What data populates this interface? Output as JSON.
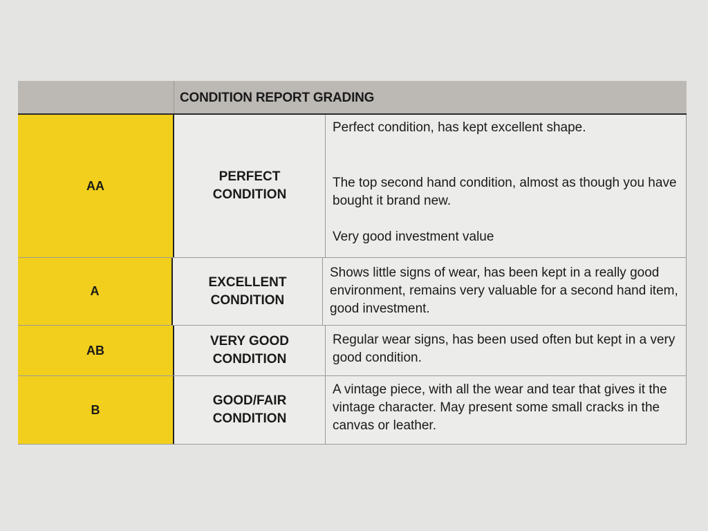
{
  "table": {
    "title": "CONDITION REPORT GRADING",
    "colors": {
      "header": "#bcb9b4",
      "grade": "#f1cf1c",
      "cell": "#ececeb"
    },
    "rows": [
      {
        "grade": "AA",
        "condition": [
          "PERFECT",
          "CONDITION"
        ],
        "description": [
          "Perfect condition, has kept excellent shape.",
          "The top second hand condition, almost as though you have bought it brand new.",
          "Very good investment value"
        ]
      },
      {
        "grade": "A",
        "condition": [
          "EXCELLENT",
          "CONDITION"
        ],
        "description": [
          "Shows little signs of wear, has been kept in a really good environment, remains very valuable for a second hand item, good investment."
        ]
      },
      {
        "grade": "AB",
        "condition": [
          "VERY GOOD",
          "CONDITION"
        ],
        "description": [
          "Regular wear signs, has been used often but kept in a very good condition."
        ]
      },
      {
        "grade": "B",
        "condition": [
          "GOOD/FAIR",
          "CONDITION"
        ],
        "description": [
          "A vintage piece, with all the wear and tear that gives it the vintage character. May present some small cracks in the canvas or leather."
        ]
      }
    ]
  }
}
